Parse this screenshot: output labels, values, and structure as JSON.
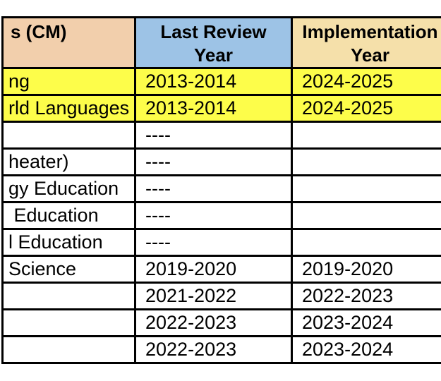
{
  "table": {
    "columns": [
      {
        "label": "s (CM)"
      },
      {
        "label": "Last Review\nYear"
      },
      {
        "label": "Implementation\nYear"
      }
    ],
    "rows": [
      {
        "area": "ng",
        "last_review": "2013-2014",
        "implementation": "2024-2025",
        "highlight": true
      },
      {
        "area": "rld Languages",
        "last_review": "2013-2014",
        "implementation": "2024-2025",
        "highlight": true
      },
      {
        "area": "",
        "last_review": "----",
        "implementation": "",
        "highlight": false
      },
      {
        "area": "heater)",
        "last_review": "----",
        "implementation": "",
        "highlight": false
      },
      {
        "area": "gy Education",
        "last_review": "----",
        "implementation": "",
        "highlight": false
      },
      {
        "area": " Education",
        "last_review": "----",
        "implementation": "",
        "highlight": false
      },
      {
        "area": "l Education",
        "last_review": "----",
        "implementation": "",
        "highlight": false
      },
      {
        "area": "Science",
        "last_review": "2019-2020",
        "implementation": "2019-2020",
        "highlight": false
      },
      {
        "area": "",
        "last_review": "2021-2022",
        "implementation": "2022-2023",
        "highlight": false
      },
      {
        "area": "",
        "last_review": "2022-2023",
        "implementation": "2023-2024",
        "highlight": false
      },
      {
        "area": "",
        "last_review": "2022-2023",
        "implementation": "2023-2024",
        "highlight": false
      }
    ],
    "colors": {
      "header_area_bg": "#f2cfac",
      "header_review_bg": "#9dc3e6",
      "header_implementation_bg": "#f5e0aa",
      "highlight_row_bg": "#fdfd4a",
      "grid_border": "#000000",
      "text": "#000000"
    }
  }
}
